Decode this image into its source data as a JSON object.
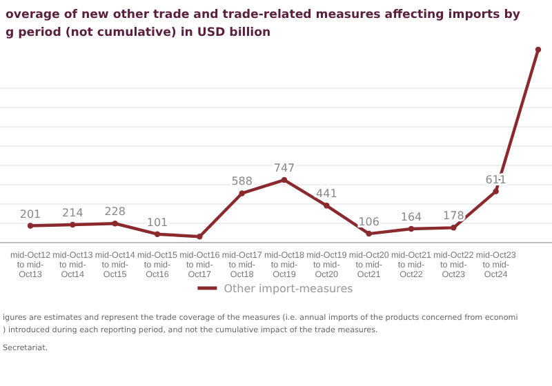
{
  "chart_data": {
    "type": "line",
    "title": "overage of new other trade and trade-related measures affecting imports by\ng period (not cumulative) in USD billion",
    "categories": [
      "mid-Oct12 to mid-Oct13",
      "mid-Oct13 to mid-Oct14",
      "mid-Oct14 to mid-Oct15",
      "mid-Oct15 to mid-Oct16",
      "mid-Oct16 to mid-Oct17",
      "mid-Oct17 to mid-Oct18",
      "mid-Oct18 to mid-Oct19",
      "mid-Oct19 to mid-Oct20",
      "mid-Oct20 to mid-Oct21",
      "mid-Oct21 to mid-Oct22",
      "mid-Oct22 to mid-Oct23",
      "mid-Oct23 to mid-Oct24",
      null
    ],
    "series": [
      {
        "name": "Other import-measures",
        "color": "#8b2a2e",
        "values": [
          201,
          214,
          228,
          101,
          72,
          588,
          747,
          441,
          106,
          164,
          178,
          611,
          2300
        ],
        "value_labels": [
          "201",
          "214",
          "228",
          "101",
          null,
          "588",
          "747",
          "441",
          "106",
          "164",
          "178",
          "611",
          null
        ]
      }
    ],
    "marker": "circle",
    "grid": "y",
    "legend": "bottom",
    "annotations": [
      "igures are estimates and represent the trade coverage of the measures (i.e. annual imports of the products concerned from economi\n) introduced during each reporting period, and not the cumulative impact of the trade measures.",
      "Secretariat."
    ]
  }
}
